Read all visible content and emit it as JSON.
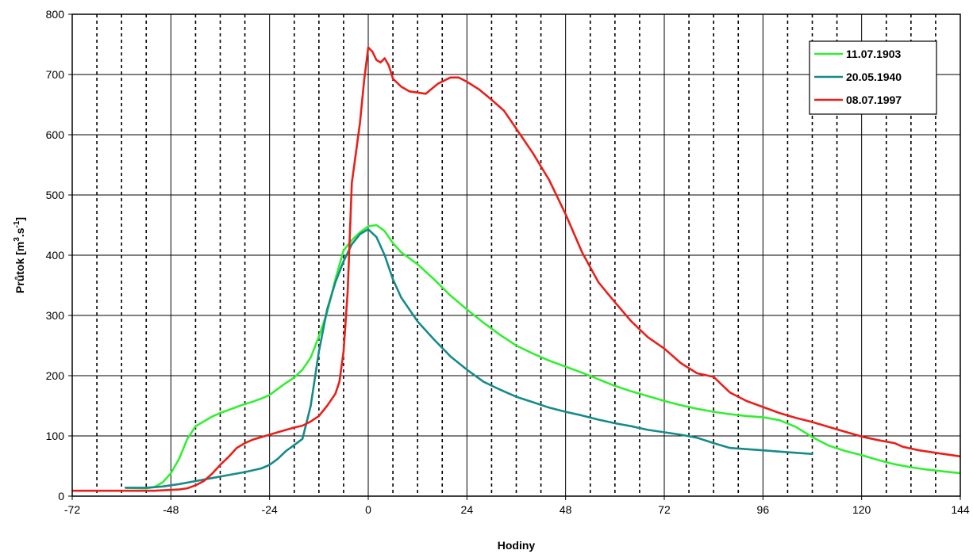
{
  "chart_data": {
    "type": "line",
    "xlabel": "Hodiny",
    "ylabel": "Průtok [m3.s-1]",
    "ylabel_parts": {
      "main": "Průtok [m",
      "sup1": "3",
      "mid": ".s",
      "sup2": "-1",
      "end": "]"
    },
    "xlim": [
      -72,
      144
    ],
    "ylim": [
      0,
      800
    ],
    "x_ticks": [
      -72,
      -48,
      -24,
      0,
      24,
      48,
      72,
      96,
      120,
      144
    ],
    "y_ticks": [
      0,
      100,
      200,
      300,
      400,
      500,
      600,
      700,
      800
    ],
    "x_dotted_grid_step": 6,
    "legend_position": "top-right",
    "grid": true,
    "series": [
      {
        "name": "11.07.1903",
        "color": "#33ee33",
        "points": [
          [
            -59,
            14
          ],
          [
            -54,
            13
          ],
          [
            -52,
            15
          ],
          [
            -50,
            23
          ],
          [
            -48,
            38
          ],
          [
            -46,
            62
          ],
          [
            -44,
            95
          ],
          [
            -42,
            116
          ],
          [
            -40,
            124
          ],
          [
            -38,
            132
          ],
          [
            -36,
            138
          ],
          [
            -34,
            143
          ],
          [
            -32,
            148
          ],
          [
            -30,
            153
          ],
          [
            -28,
            157
          ],
          [
            -26,
            162
          ],
          [
            -24,
            168
          ],
          [
            -22,
            178
          ],
          [
            -20,
            188
          ],
          [
            -18,
            197
          ],
          [
            -16,
            210
          ],
          [
            -14,
            230
          ],
          [
            -12,
            265
          ],
          [
            -10,
            305
          ],
          [
            -8,
            360
          ],
          [
            -6,
            408
          ],
          [
            -4,
            425
          ],
          [
            -2,
            438
          ],
          [
            0,
            448
          ],
          [
            2,
            450
          ],
          [
            4,
            440
          ],
          [
            6,
            420
          ],
          [
            8,
            405
          ],
          [
            12,
            385
          ],
          [
            16,
            360
          ],
          [
            20,
            333
          ],
          [
            24,
            310
          ],
          [
            28,
            288
          ],
          [
            32,
            268
          ],
          [
            36,
            250
          ],
          [
            40,
            237
          ],
          [
            44,
            225
          ],
          [
            48,
            215
          ],
          [
            52,
            205
          ],
          [
            56,
            194
          ],
          [
            60,
            183
          ],
          [
            64,
            174
          ],
          [
            68,
            166
          ],
          [
            72,
            158
          ],
          [
            76,
            151
          ],
          [
            80,
            145
          ],
          [
            84,
            140
          ],
          [
            88,
            136
          ],
          [
            92,
            133
          ],
          [
            96,
            131
          ],
          [
            100,
            126
          ],
          [
            104,
            115
          ],
          [
            108,
            98
          ],
          [
            112,
            84
          ],
          [
            116,
            75
          ],
          [
            120,
            68
          ],
          [
            124,
            60
          ],
          [
            128,
            53
          ],
          [
            132,
            48
          ],
          [
            136,
            44
          ],
          [
            140,
            41
          ],
          [
            144,
            38
          ]
        ]
      },
      {
        "name": "20.05.1940",
        "color": "#168a8a",
        "points": [
          [
            -59,
            14
          ],
          [
            -54,
            14
          ],
          [
            -50,
            16
          ],
          [
            -46,
            20
          ],
          [
            -42,
            25
          ],
          [
            -38,
            30
          ],
          [
            -34,
            35
          ],
          [
            -30,
            40
          ],
          [
            -26,
            46
          ],
          [
            -24,
            52
          ],
          [
            -22,
            62
          ],
          [
            -20,
            75
          ],
          [
            -18,
            85
          ],
          [
            -16,
            95
          ],
          [
            -14,
            150
          ],
          [
            -12,
            240
          ],
          [
            -10,
            310
          ],
          [
            -8,
            355
          ],
          [
            -6,
            390
          ],
          [
            -4,
            418
          ],
          [
            -2,
            435
          ],
          [
            0,
            443
          ],
          [
            2,
            430
          ],
          [
            4,
            400
          ],
          [
            6,
            360
          ],
          [
            8,
            330
          ],
          [
            12,
            290
          ],
          [
            16,
            260
          ],
          [
            20,
            232
          ],
          [
            24,
            210
          ],
          [
            28,
            190
          ],
          [
            32,
            177
          ],
          [
            36,
            165
          ],
          [
            40,
            156
          ],
          [
            44,
            147
          ],
          [
            48,
            140
          ],
          [
            52,
            134
          ],
          [
            56,
            127
          ],
          [
            60,
            121
          ],
          [
            64,
            116
          ],
          [
            68,
            110
          ],
          [
            72,
            106
          ],
          [
            76,
            102
          ],
          [
            80,
            97
          ],
          [
            84,
            88
          ],
          [
            88,
            80
          ],
          [
            92,
            78
          ],
          [
            96,
            76
          ],
          [
            100,
            74
          ],
          [
            104,
            72
          ],
          [
            108,
            70
          ]
        ]
      },
      {
        "name": "08.07.1997",
        "color": "#e8201a",
        "points": [
          [
            -72,
            9
          ],
          [
            -60,
            9
          ],
          [
            -52,
            9
          ],
          [
            -46,
            11
          ],
          [
            -44,
            13
          ],
          [
            -42,
            18
          ],
          [
            -40,
            25
          ],
          [
            -38,
            37
          ],
          [
            -36,
            52
          ],
          [
            -34,
            65
          ],
          [
            -32,
            80
          ],
          [
            -30,
            88
          ],
          [
            -28,
            94
          ],
          [
            -26,
            98
          ],
          [
            -24,
            102
          ],
          [
            -22,
            106
          ],
          [
            -20,
            110
          ],
          [
            -18,
            114
          ],
          [
            -16,
            117
          ],
          [
            -14,
            124
          ],
          [
            -12,
            133
          ],
          [
            -10,
            150
          ],
          [
            -8,
            170
          ],
          [
            -7,
            190
          ],
          [
            -6,
            240
          ],
          [
            -5,
            340
          ],
          [
            -4,
            520
          ],
          [
            -3,
            570
          ],
          [
            -2,
            620
          ],
          [
            -1,
            690
          ],
          [
            0,
            745
          ],
          [
            1,
            738
          ],
          [
            2,
            724
          ],
          [
            3,
            720
          ],
          [
            4,
            727
          ],
          [
            5,
            715
          ],
          [
            6,
            693
          ],
          [
            8,
            680
          ],
          [
            10,
            672
          ],
          [
            14,
            668
          ],
          [
            17,
            685
          ],
          [
            20,
            695
          ],
          [
            22,
            695
          ],
          [
            24,
            688
          ],
          [
            27,
            675
          ],
          [
            30,
            658
          ],
          [
            33,
            640
          ],
          [
            36,
            610
          ],
          [
            40,
            570
          ],
          [
            44,
            525
          ],
          [
            48,
            468
          ],
          [
            52,
            405
          ],
          [
            56,
            355
          ],
          [
            60,
            322
          ],
          [
            64,
            290
          ],
          [
            68,
            264
          ],
          [
            72,
            245
          ],
          [
            76,
            221
          ],
          [
            80,
            204
          ],
          [
            84,
            198
          ],
          [
            86,
            185
          ],
          [
            88,
            172
          ],
          [
            92,
            158
          ],
          [
            96,
            148
          ],
          [
            100,
            138
          ],
          [
            104,
            130
          ],
          [
            108,
            123
          ],
          [
            112,
            115
          ],
          [
            116,
            107
          ],
          [
            120,
            99
          ],
          [
            124,
            93
          ],
          [
            128,
            88
          ],
          [
            130,
            82
          ],
          [
            134,
            76
          ],
          [
            138,
            72
          ],
          [
            142,
            68
          ],
          [
            144,
            66
          ]
        ]
      }
    ]
  }
}
